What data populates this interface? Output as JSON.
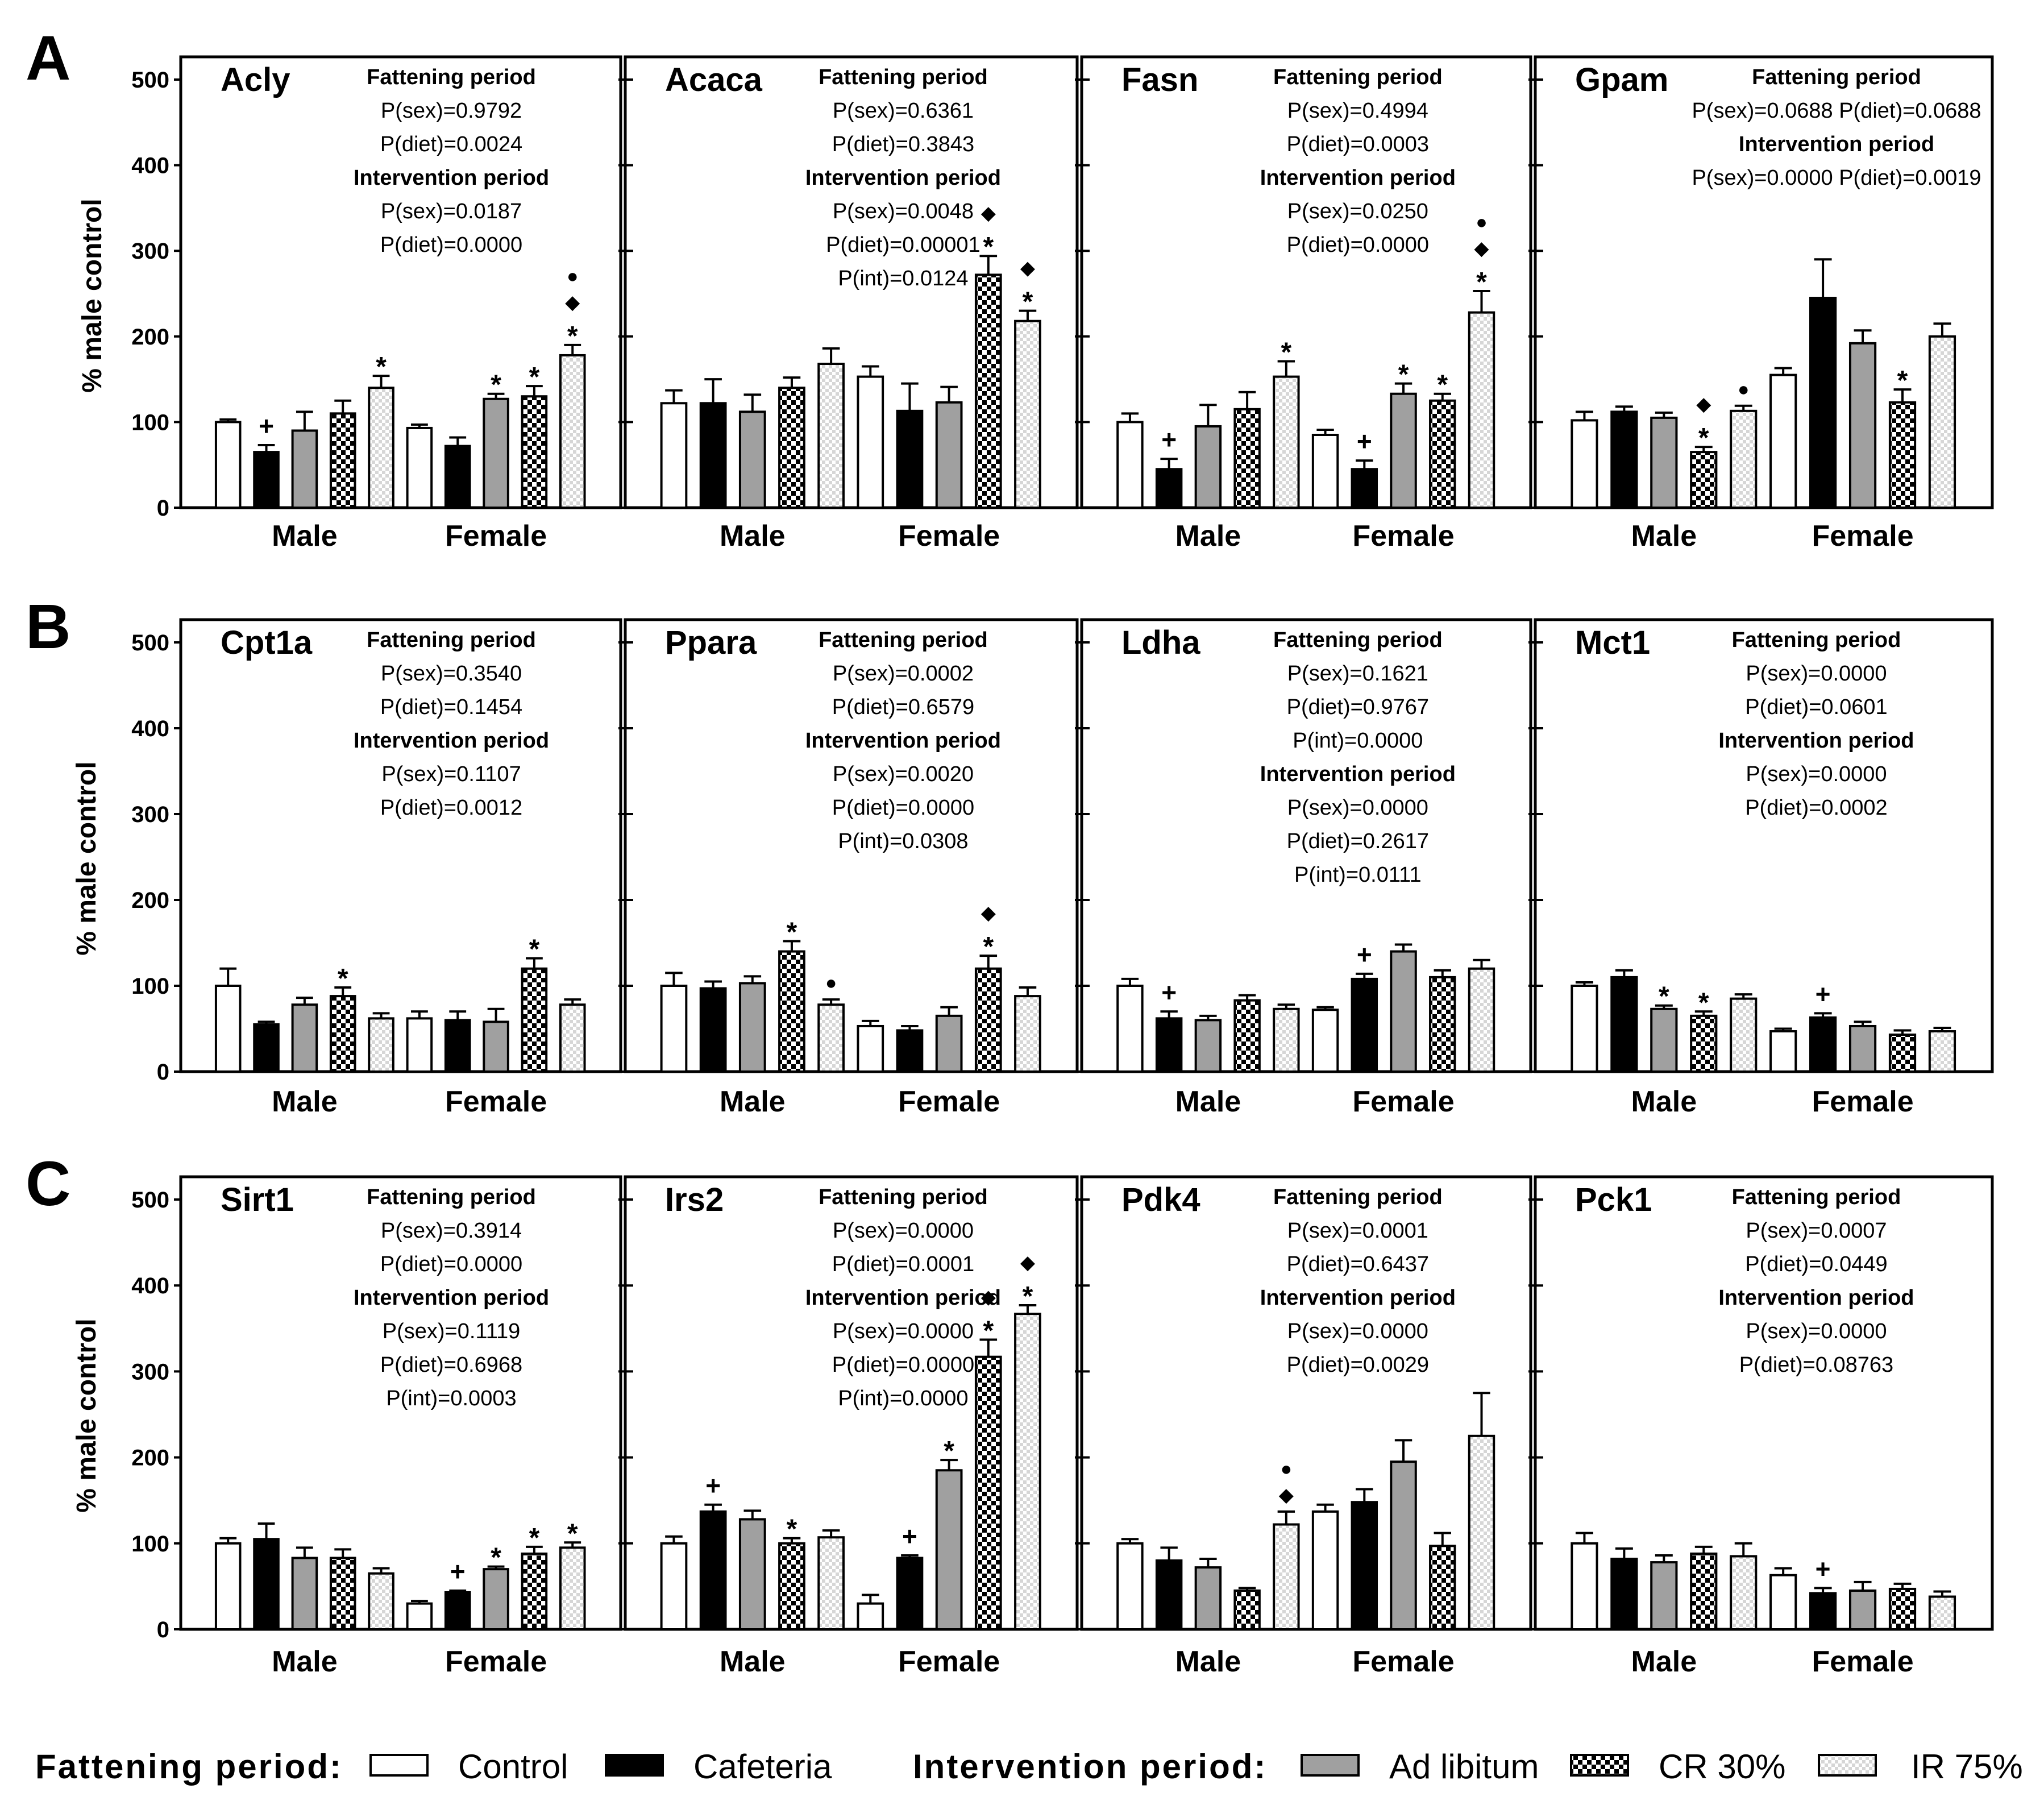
{
  "figure_labels": {
    "row_letters": [
      "A",
      "B",
      "C"
    ],
    "ylabel": "% male control"
  },
  "legend": {
    "fattening_label": "Fattening period:",
    "intervention_label": "Intervention period:",
    "items": [
      {
        "label": "Control",
        "pattern": "white"
      },
      {
        "label": "Cafeteria",
        "pattern": "black"
      },
      {
        "label": "Ad libitum",
        "pattern": "gray"
      },
      {
        "label": "CR 30%",
        "pattern": "checker"
      },
      {
        "label": "IR 75%",
        "pattern": "lightchecker"
      }
    ]
  },
  "colors": {
    "gray": "#a0a0a0",
    "black": "#000000",
    "white": "#ffffff",
    "light_checker": "#dedede"
  },
  "chart_data": [
    {
      "type": "bar",
      "title": "Acly",
      "row": "A",
      "ylim": [
        0,
        500
      ],
      "yticks": [
        0,
        100,
        200,
        300,
        400,
        500
      ],
      "ylabel": "% male control",
      "categories": [
        "Male",
        "Female"
      ],
      "series_names": [
        "Control",
        "Cafeteria",
        "Ad libitum",
        "CR 30%",
        "IR 75%"
      ],
      "values": [
        [
          100,
          65,
          90,
          110,
          140
        ],
        [
          93,
          72,
          127,
          130,
          178
        ]
      ],
      "errors": [
        [
          3,
          8,
          22,
          15,
          14
        ],
        [
          4,
          10,
          6,
          12,
          12
        ]
      ],
      "annotations": [
        [
          "",
          "+",
          "",
          "",
          "*"
        ],
        [
          "",
          "",
          "*",
          "*",
          "*◆●"
        ]
      ],
      "stats": [
        {
          "text": "Fattening period",
          "bold": true
        },
        {
          "text": "P(sex)=0.9792"
        },
        {
          "text": "P(diet)=0.0024"
        },
        {
          "text": "Intervention period",
          "bold": true
        },
        {
          "text": "P(sex)=0.0187"
        },
        {
          "text": "P(diet)=0.0000"
        }
      ]
    },
    {
      "type": "bar",
      "title": "Acaca",
      "row": "A",
      "ylim": [
        0,
        500
      ],
      "yticks": [
        0,
        100,
        200,
        300,
        400,
        500
      ],
      "ylabel": "",
      "categories": [
        "Male",
        "Female"
      ],
      "series_names": [
        "Control",
        "Cafeteria",
        "Ad libitum",
        "CR 30%",
        "IR 75%"
      ],
      "values": [
        [
          122,
          122,
          112,
          140,
          168
        ],
        [
          153,
          113,
          123,
          272,
          218
        ]
      ],
      "errors": [
        [
          15,
          28,
          20,
          12,
          18
        ],
        [
          12,
          32,
          18,
          22,
          12
        ]
      ],
      "annotations": [
        [
          "",
          "",
          "",
          "",
          ""
        ],
        [
          "",
          "",
          "",
          "*◆",
          "*◆"
        ]
      ],
      "stats": [
        {
          "text": "Fattening period",
          "bold": true
        },
        {
          "text": "P(sex)=0.6361"
        },
        {
          "text": "P(diet)=0.3843"
        },
        {
          "text": "Intervention period",
          "bold": true
        },
        {
          "text": "P(sex)=0.0048"
        },
        {
          "text": "P(diet)=0.00001"
        },
        {
          "text": "P(int)=0.0124"
        }
      ]
    },
    {
      "type": "bar",
      "title": "Fasn",
      "row": "A",
      "ylim": [
        0,
        500
      ],
      "yticks": [
        0,
        100,
        200,
        300,
        400,
        500
      ],
      "ylabel": "",
      "categories": [
        "Male",
        "Female"
      ],
      "series_names": [
        "Control",
        "Cafeteria",
        "Ad libitum",
        "CR 30%",
        "IR 75%"
      ],
      "values": [
        [
          100,
          45,
          95,
          115,
          153
        ],
        [
          85,
          45,
          133,
          125,
          228
        ]
      ],
      "errors": [
        [
          10,
          12,
          25,
          20,
          18
        ],
        [
          6,
          10,
          12,
          8,
          25
        ]
      ],
      "annotations": [
        [
          "",
          "+",
          "",
          "",
          "*"
        ],
        [
          "",
          "+",
          "*",
          "*",
          "*◆●"
        ]
      ],
      "stats": [
        {
          "text": "Fattening period",
          "bold": true
        },
        {
          "text": "P(sex)=0.4994"
        },
        {
          "text": "P(diet)=0.0003"
        },
        {
          "text": "Intervention period",
          "bold": true
        },
        {
          "text": "P(sex)=0.0250"
        },
        {
          "text": "P(diet)=0.0000"
        }
      ]
    },
    {
      "type": "bar",
      "title": "Gpam",
      "row": "A",
      "ylim": [
        0,
        500
      ],
      "yticks": [
        0,
        100,
        200,
        300,
        400,
        500
      ],
      "ylabel": "",
      "categories": [
        "Male",
        "Female"
      ],
      "series_names": [
        "Control",
        "Cafeteria",
        "Ad libitum",
        "CR 30%",
        "IR 75%"
      ],
      "values": [
        [
          102,
          112,
          105,
          65,
          113
        ],
        [
          155,
          245,
          192,
          123,
          200
        ]
      ],
      "errors": [
        [
          10,
          6,
          6,
          6,
          6
        ],
        [
          8,
          45,
          15,
          15,
          15
        ]
      ],
      "annotations": [
        [
          "",
          "",
          "",
          "*◆",
          "●"
        ],
        [
          "",
          "",
          "",
          "*",
          ""
        ]
      ],
      "stats": [
        {
          "text": "Fattening period",
          "bold": true
        },
        {
          "text": "P(sex)=0.0688 P(diet)=0.0688"
        },
        {
          "text": "Intervention period",
          "bold": true
        },
        {
          "text": "P(sex)=0.0000 P(diet)=0.0019"
        }
      ]
    },
    {
      "type": "bar",
      "title": "Cpt1a",
      "row": "B",
      "ylim": [
        0,
        500
      ],
      "yticks": [
        0,
        100,
        200,
        300,
        400,
        500
      ],
      "ylabel": "% male control",
      "categories": [
        "Male",
        "Female"
      ],
      "series_names": [
        "Control",
        "Cafeteria",
        "Ad libitum",
        "CR 30%",
        "IR 75%"
      ],
      "values": [
        [
          100,
          55,
          78,
          88,
          62
        ],
        [
          62,
          60,
          58,
          120,
          78
        ]
      ],
      "errors": [
        [
          20,
          3,
          8,
          10,
          6
        ],
        [
          8,
          10,
          15,
          12,
          6
        ]
      ],
      "annotations": [
        [
          "",
          "",
          "",
          "*",
          ""
        ],
        [
          "",
          "",
          "",
          "*",
          ""
        ]
      ],
      "stats": [
        {
          "text": "Fattening period",
          "bold": true
        },
        {
          "text": "P(sex)=0.3540"
        },
        {
          "text": "P(diet)=0.1454"
        },
        {
          "text": "Intervention period",
          "bold": true
        },
        {
          "text": "P(sex)=0.1107"
        },
        {
          "text": "P(diet)=0.0012"
        }
      ]
    },
    {
      "type": "bar",
      "title": "Ppara",
      "row": "B",
      "ylim": [
        0,
        500
      ],
      "yticks": [
        0,
        100,
        200,
        300,
        400,
        500
      ],
      "ylabel": "",
      "categories": [
        "Male",
        "Female"
      ],
      "series_names": [
        "Control",
        "Cafeteria",
        "Ad libitum",
        "CR 30%",
        "IR 75%"
      ],
      "values": [
        [
          100,
          97,
          103,
          140,
          78
        ],
        [
          53,
          48,
          65,
          120,
          88
        ]
      ],
      "errors": [
        [
          15,
          8,
          8,
          12,
          6
        ],
        [
          6,
          5,
          10,
          15,
          10
        ]
      ],
      "annotations": [
        [
          "",
          "",
          "",
          "*",
          "●"
        ],
        [
          "",
          "",
          "",
          "*◆",
          ""
        ]
      ],
      "stats": [
        {
          "text": "Fattening period",
          "bold": true
        },
        {
          "text": "P(sex)=0.0002"
        },
        {
          "text": "P(diet)=0.6579"
        },
        {
          "text": "Intervention period",
          "bold": true
        },
        {
          "text": "P(sex)=0.0020"
        },
        {
          "text": "P(diet)=0.0000"
        },
        {
          "text": "P(int)=0.0308"
        }
      ]
    },
    {
      "type": "bar",
      "title": "Ldha",
      "row": "B",
      "ylim": [
        0,
        500
      ],
      "yticks": [
        0,
        100,
        200,
        300,
        400,
        500
      ],
      "ylabel": "",
      "categories": [
        "Male",
        "Female"
      ],
      "series_names": [
        "Control",
        "Cafeteria",
        "Ad libitum",
        "CR 30%",
        "IR 75%"
      ],
      "values": [
        [
          100,
          62,
          60,
          83,
          73
        ],
        [
          72,
          108,
          140,
          110,
          120
        ]
      ],
      "errors": [
        [
          8,
          8,
          5,
          6,
          5
        ],
        [
          3,
          6,
          8,
          8,
          10
        ]
      ],
      "annotations": [
        [
          "",
          "+",
          "",
          "",
          ""
        ],
        [
          "",
          "+",
          "",
          "",
          ""
        ]
      ],
      "stats": [
        {
          "text": "Fattening period",
          "bold": true
        },
        {
          "text": "P(sex)=0.1621"
        },
        {
          "text": "P(diet)=0.9767"
        },
        {
          "text": "P(int)=0.0000"
        },
        {
          "text": "Intervention period",
          "bold": true
        },
        {
          "text": "P(sex)=0.0000"
        },
        {
          "text": "P(diet)=0.2617"
        },
        {
          "text": "P(int)=0.0111"
        }
      ]
    },
    {
      "type": "bar",
      "title": "Mct1",
      "row": "B",
      "ylim": [
        0,
        500
      ],
      "yticks": [
        0,
        100,
        200,
        300,
        400,
        500
      ],
      "ylabel": "",
      "categories": [
        "Male",
        "Female"
      ],
      "series_names": [
        "Control",
        "Cafeteria",
        "Ad libitum",
        "CR 30%",
        "IR 75%"
      ],
      "values": [
        [
          100,
          110,
          73,
          65,
          85
        ],
        [
          47,
          63,
          53,
          43,
          47
        ]
      ],
      "errors": [
        [
          4,
          8,
          4,
          5,
          5
        ],
        [
          3,
          5,
          5,
          5,
          4
        ]
      ],
      "annotations": [
        [
          "",
          "",
          "*",
          "*",
          ""
        ],
        [
          "",
          "+",
          "",
          "",
          ""
        ]
      ],
      "stats": [
        {
          "text": "Fattening period",
          "bold": true
        },
        {
          "text": "P(sex)=0.0000"
        },
        {
          "text": "P(diet)=0.0601"
        },
        {
          "text": "Intervention period",
          "bold": true
        },
        {
          "text": "P(sex)=0.0000"
        },
        {
          "text": "P(diet)=0.0002"
        }
      ]
    },
    {
      "type": "bar",
      "title": "Sirt1",
      "row": "C",
      "ylim": [
        0,
        500
      ],
      "yticks": [
        0,
        100,
        200,
        300,
        400,
        500
      ],
      "ylabel": "% male control",
      "categories": [
        "Male",
        "Female"
      ],
      "series_names": [
        "Control",
        "Cafeteria",
        "Ad libitum",
        "CR 30%",
        "IR 75%"
      ],
      "values": [
        [
          100,
          105,
          83,
          83,
          65
        ],
        [
          30,
          43,
          70,
          88,
          95
        ]
      ],
      "errors": [
        [
          6,
          18,
          12,
          10,
          6
        ],
        [
          3,
          2,
          3,
          8,
          6
        ]
      ],
      "annotations": [
        [
          "",
          "",
          "",
          "",
          ""
        ],
        [
          "",
          "+",
          "*",
          "*",
          "*"
        ]
      ],
      "stats": [
        {
          "text": "Fattening period",
          "bold": true
        },
        {
          "text": "P(sex)=0.3914"
        },
        {
          "text": "P(diet)=0.0000"
        },
        {
          "text": "Intervention period",
          "bold": true
        },
        {
          "text": "P(sex)=0.1119"
        },
        {
          "text": "P(diet)=0.6968"
        },
        {
          "text": "P(int)=0.0003"
        }
      ]
    },
    {
      "type": "bar",
      "title": "Irs2",
      "row": "C",
      "ylim": [
        0,
        500
      ],
      "yticks": [
        0,
        100,
        200,
        300,
        400,
        500
      ],
      "ylabel": "",
      "categories": [
        "Male",
        "Female"
      ],
      "series_names": [
        "Control",
        "Cafeteria",
        "Ad libitum",
        "CR 30%",
        "IR 75%"
      ],
      "values": [
        [
          100,
          137,
          128,
          100,
          107
        ],
        [
          30,
          83,
          185,
          317,
          367
        ]
      ],
      "errors": [
        [
          8,
          8,
          10,
          6,
          8
        ],
        [
          10,
          3,
          12,
          20,
          10
        ]
      ],
      "annotations": [
        [
          "",
          "+",
          "",
          "*",
          ""
        ],
        [
          "",
          "+",
          "*",
          "*◆",
          "*◆"
        ]
      ],
      "stats": [
        {
          "text": "Fattening period",
          "bold": true
        },
        {
          "text": "P(sex)=0.0000"
        },
        {
          "text": "P(diet)=0.0001"
        },
        {
          "text": "Intervention period",
          "bold": true
        },
        {
          "text": "P(sex)=0.0000"
        },
        {
          "text": "P(diet)=0.0000"
        },
        {
          "text": "P(int)=0.0000"
        }
      ]
    },
    {
      "type": "bar",
      "title": "Pdk4",
      "row": "C",
      "ylim": [
        0,
        500
      ],
      "yticks": [
        0,
        100,
        200,
        300,
        400,
        500
      ],
      "ylabel": "",
      "categories": [
        "Male",
        "Female"
      ],
      "series_names": [
        "Control",
        "Cafeteria",
        "Ad libitum",
        "CR 30%",
        "IR 75%"
      ],
      "values": [
        [
          100,
          80,
          72,
          45,
          122
        ],
        [
          137,
          148,
          195,
          97,
          225
        ]
      ],
      "errors": [
        [
          5,
          15,
          10,
          3,
          15
        ],
        [
          8,
          15,
          25,
          15,
          50
        ]
      ],
      "annotations": [
        [
          "",
          "",
          "",
          "",
          "◆●"
        ],
        [
          "",
          "",
          "",
          "",
          ""
        ]
      ],
      "stats": [
        {
          "text": "Fattening period",
          "bold": true
        },
        {
          "text": "P(sex)=0.0001"
        },
        {
          "text": "P(diet)=0.6437"
        },
        {
          "text": "Intervention period",
          "bold": true
        },
        {
          "text": "P(sex)=0.0000"
        },
        {
          "text": "P(diet)=0.0029"
        }
      ]
    },
    {
      "type": "bar",
      "title": "Pck1",
      "row": "C",
      "ylim": [
        0,
        500
      ],
      "yticks": [
        0,
        100,
        200,
        300,
        400,
        500
      ],
      "ylabel": "",
      "categories": [
        "Male",
        "Female"
      ],
      "series_names": [
        "Control",
        "Cafeteria",
        "Ad libitum",
        "CR 30%",
        "IR 75%"
      ],
      "values": [
        [
          100,
          82,
          78,
          88,
          85
        ],
        [
          63,
          42,
          45,
          47,
          38
        ]
      ],
      "errors": [
        [
          12,
          12,
          8,
          8,
          15
        ],
        [
          8,
          6,
          10,
          6,
          6
        ]
      ],
      "annotations": [
        [
          "",
          "",
          "",
          "",
          ""
        ],
        [
          "",
          "+",
          "",
          "",
          ""
        ]
      ],
      "stats": [
        {
          "text": "Fattening period",
          "bold": true
        },
        {
          "text": "P(sex)=0.0007"
        },
        {
          "text": "P(diet)=0.0449"
        },
        {
          "text": "Intervention period",
          "bold": true
        },
        {
          "text": "P(sex)=0.0000"
        },
        {
          "text": "P(diet)=0.08763"
        }
      ]
    }
  ]
}
